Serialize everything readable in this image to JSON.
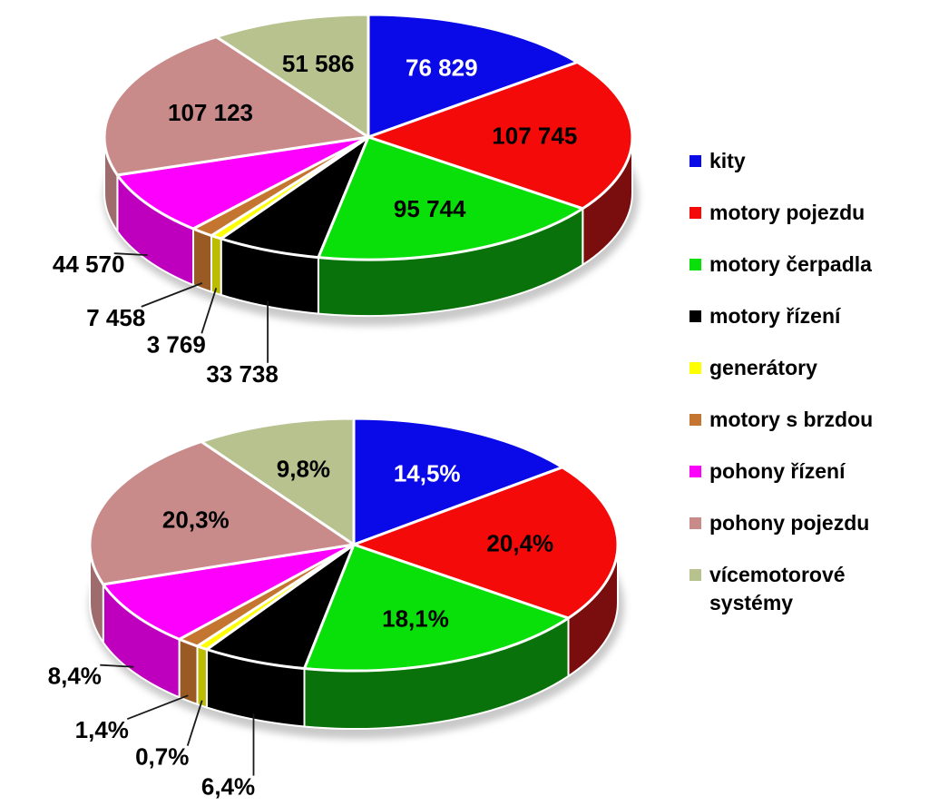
{
  "page": {
    "background": "#FFFFFF"
  },
  "palette": {
    "top": [
      "#0A0AE8",
      "#F50A0A",
      "#09DF09",
      "#000000",
      "#FFFF00",
      "#C4752F",
      "#FD00FD",
      "#C98A8A",
      "#B7C28F"
    ],
    "side": [
      "#05057E",
      "#7A0D0D",
      "#0A720A",
      "#000000",
      "#BCBC00",
      "#9A5A24",
      "#BE00BE",
      "#9E6C6C",
      "#8F9B66"
    ],
    "slice_stroke": "#FFFFFF",
    "leader_line": "#1A1A1A"
  },
  "legend": {
    "position": "right",
    "items": [
      "kity",
      "motory pojezdu",
      "motory čerpadla",
      "motory řízení",
      "generátory",
      "motory s brzdou",
      "pohony řízení",
      "pohony pojezdu",
      "vícemotorové systémy"
    ]
  },
  "chart_data": [
    {
      "type": "pie",
      "style": "3d",
      "title": "",
      "categories": [
        "kity",
        "motory pojezdu",
        "motory čerpadla",
        "motory řízení",
        "generátory",
        "motory s brzdou",
        "pohony řízení",
        "pohony pojezdu",
        "vícemotorové systémy"
      ],
      "values": [
        76829,
        107745,
        95744,
        33738,
        3769,
        7458,
        44570,
        107123,
        51586
      ],
      "data_labels": [
        "76 829",
        "107 745",
        "95 744",
        "33 738",
        "3 769",
        "7 458",
        "44 570",
        "107 123",
        "51 586"
      ],
      "label_placement": [
        "inside",
        "inside",
        "inside",
        "outside",
        "outside",
        "outside",
        "outside",
        "inside",
        "inside"
      ],
      "label_colors": [
        "#FFFFFF",
        "#000000",
        "#000000",
        "#000000",
        "#000000",
        "#000000",
        "#000000",
        "#000000",
        "#000000"
      ],
      "start_angle_deg": -90,
      "direction": "clockwise",
      "legend_position": "right"
    },
    {
      "type": "pie",
      "style": "3d",
      "title": "",
      "categories": [
        "kity",
        "motory pojezdu",
        "motory čerpadla",
        "motory řízení",
        "generátory",
        "motory s brzdou",
        "pohony řízení",
        "pohony pojezdu",
        "vícemotorové systémy"
      ],
      "values": [
        14.5,
        20.4,
        18.1,
        6.4,
        0.7,
        1.4,
        8.4,
        20.3,
        9.8
      ],
      "data_labels": [
        "14,5%",
        "20,4%",
        "18,1%",
        "6,4%",
        "0,7%",
        "1,4%",
        "8,4%",
        "20,3%",
        "9,8%"
      ],
      "label_placement": [
        "inside",
        "inside",
        "inside",
        "outside",
        "outside",
        "outside",
        "outside",
        "inside",
        "inside"
      ],
      "label_colors": [
        "#FFFFFF",
        "#000000",
        "#000000",
        "#000000",
        "#000000",
        "#000000",
        "#000000",
        "#000000",
        "#000000"
      ],
      "start_angle_deg": -90,
      "direction": "clockwise",
      "legend_position": "right"
    }
  ]
}
